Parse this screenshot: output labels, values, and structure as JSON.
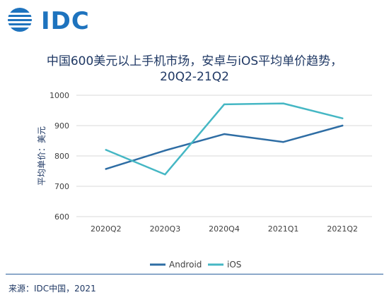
{
  "logo": {
    "text": "IDC"
  },
  "chart_data": {
    "type": "line",
    "title": "中国600美元以上手机市场，安卓与iOS平均单价趋势，",
    "subtitle": "20Q2-21Q2",
    "xlabel": "",
    "ylabel": "平均单价：美元",
    "categories": [
      "2020Q2",
      "2020Q3",
      "2020Q4",
      "2021Q1",
      "2021Q2"
    ],
    "series": [
      {
        "name": "Android",
        "color": "#2e6da4",
        "values": [
          757,
          818,
          872,
          846,
          900
        ]
      },
      {
        "name": "iOS",
        "color": "#45b7c4",
        "values": [
          820,
          739,
          970,
          973,
          924
        ]
      }
    ],
    "ylim": [
      600,
      1000
    ],
    "yticks": [
      "1000",
      "900",
      "800",
      "700",
      "600"
    ],
    "grid": true,
    "legend_position": "bottom-center"
  },
  "footer": {
    "source": "来源：IDC中国，2021"
  }
}
